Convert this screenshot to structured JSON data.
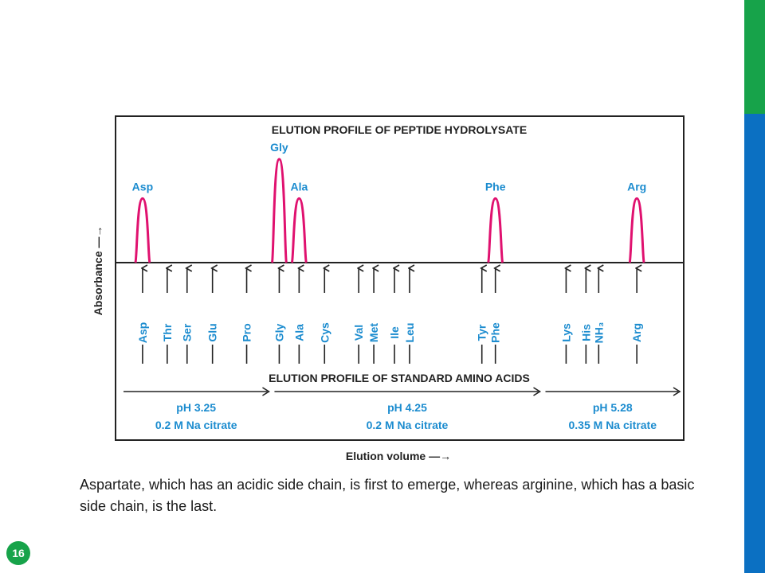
{
  "theme": {
    "green": "#17a34a",
    "blue": "#0b70c2",
    "peak_color": "#e0116f",
    "label_color": "#1c8ccf",
    "ink": "#222222"
  },
  "slide": {
    "caption": "Aspartate, which has an acidic side chain, is first to emerge, whereas arginine, which has a basic side chain, is the last.",
    "page_number": "16"
  },
  "chart_data": {
    "type": "line",
    "title": "ELUTION PROFILE OF  PEPTIDE HYDROLYSATE",
    "bottom_title": "ELUTION PROFILE OF STANDARD AMINO ACIDS",
    "ylabel": "Absorbance —→",
    "xlabel": "Elution volume —→",
    "peaks": [
      {
        "label": "Asp",
        "position": 79,
        "height": 0.62
      },
      {
        "label": "Gly",
        "position": 251,
        "height": 1.0
      },
      {
        "label": "Ala",
        "position": 276,
        "height": 0.62
      },
      {
        "label": "Phe",
        "position": 523,
        "height": 0.62
      },
      {
        "label": "Arg",
        "position": 701,
        "height": 0.62
      }
    ],
    "standards": [
      {
        "label": "Asp",
        "position": 79
      },
      {
        "label": "Thr",
        "position": 110
      },
      {
        "label": "Ser",
        "position": 135
      },
      {
        "label": "Glu",
        "position": 167
      },
      {
        "label": "Pro",
        "position": 210
      },
      {
        "label": "Gly",
        "position": 251
      },
      {
        "label": "Ala",
        "position": 276
      },
      {
        "label": "Cys",
        "position": 308
      },
      {
        "label": "Val",
        "position": 351
      },
      {
        "label": "Met",
        "position": 370
      },
      {
        "label": "Ile",
        "position": 396
      },
      {
        "label": "Leu",
        "position": 415
      },
      {
        "label": "Tyr",
        "position": 506
      },
      {
        "label": "Phe",
        "position": 523
      },
      {
        "label": "Lys",
        "position": 612
      },
      {
        "label": "His",
        "position": 637
      },
      {
        "label": "NH₃",
        "position": 653
      },
      {
        "label": "Arg",
        "position": 701
      }
    ],
    "buffers": [
      {
        "ph": "pH 3.25",
        "solution": "0.2 M Na citrate",
        "start": 55,
        "end": 238
      },
      {
        "ph": "pH 4.25",
        "solution": "0.2 M Na citrate",
        "start": 245,
        "end": 579
      },
      {
        "ph": "pH 5.28",
        "solution": "0.35 M Na citrate",
        "start": 586,
        "end": 755
      }
    ],
    "xlim": [
      45,
      760
    ],
    "ylim": [
      0,
      1
    ]
  }
}
